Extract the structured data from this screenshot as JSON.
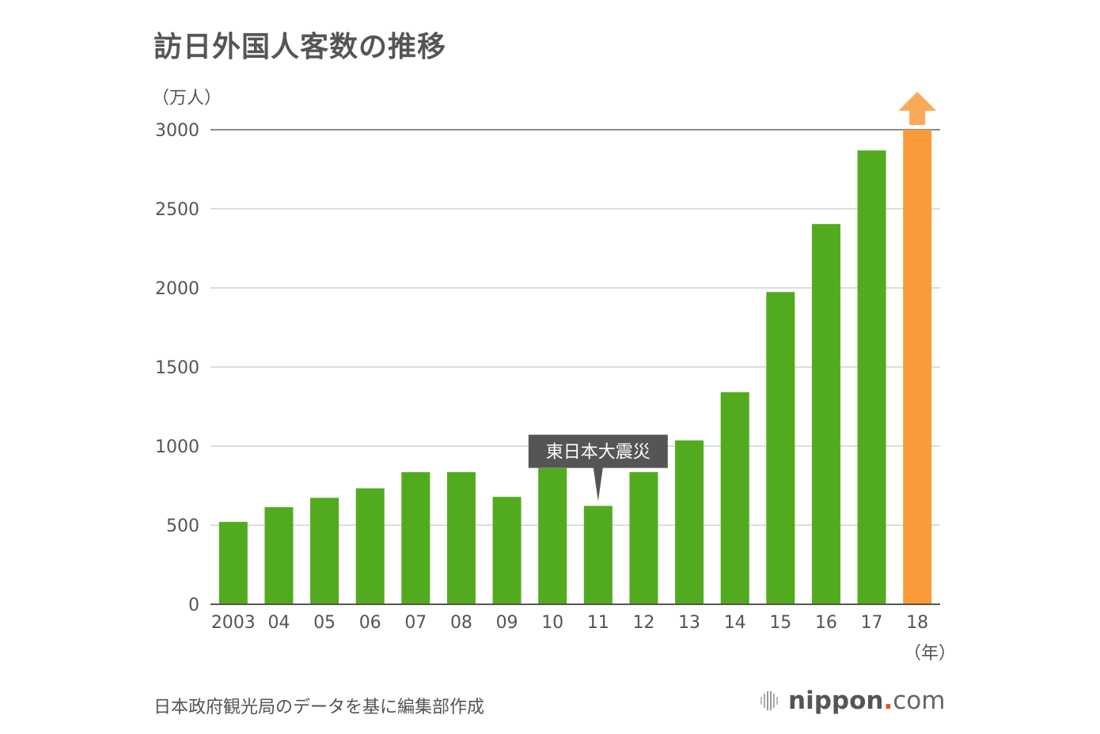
{
  "title": "訪日外国人客数の推移",
  "source_note": "日本政府観光局のデータを基に編集部作成",
  "logo": {
    "name": "nippon",
    "dot": ".",
    "tld": "com"
  },
  "colors": {
    "bar": "#52ab1e",
    "highlight": "#f99b3a",
    "gridline": "#dddddd",
    "axis": "#555555",
    "text": "#555555",
    "callout_bg": "#555555",
    "callout_text": "#ffffff"
  },
  "chart_data": {
    "type": "bar",
    "title": "訪日外国人客数の推移",
    "ylabel": "（万人）",
    "xlabel": "（年）",
    "categories": [
      "2003",
      "04",
      "05",
      "06",
      "07",
      "08",
      "09",
      "10",
      "11",
      "12",
      "13",
      "14",
      "15",
      "16",
      "17",
      "18"
    ],
    "values": [
      521,
      614,
      673,
      733,
      835,
      835,
      679,
      861,
      622,
      836,
      1036,
      1341,
      1974,
      2404,
      2869,
      3000
    ],
    "highlight_index": 15,
    "highlight_note": "upward arrow",
    "ylim": [
      0,
      3000
    ],
    "yticks": [
      0,
      500,
      1000,
      1500,
      2000,
      2500,
      3000
    ],
    "grid": true,
    "annotation": {
      "text": "東日本大震災",
      "category_index": 8
    }
  }
}
